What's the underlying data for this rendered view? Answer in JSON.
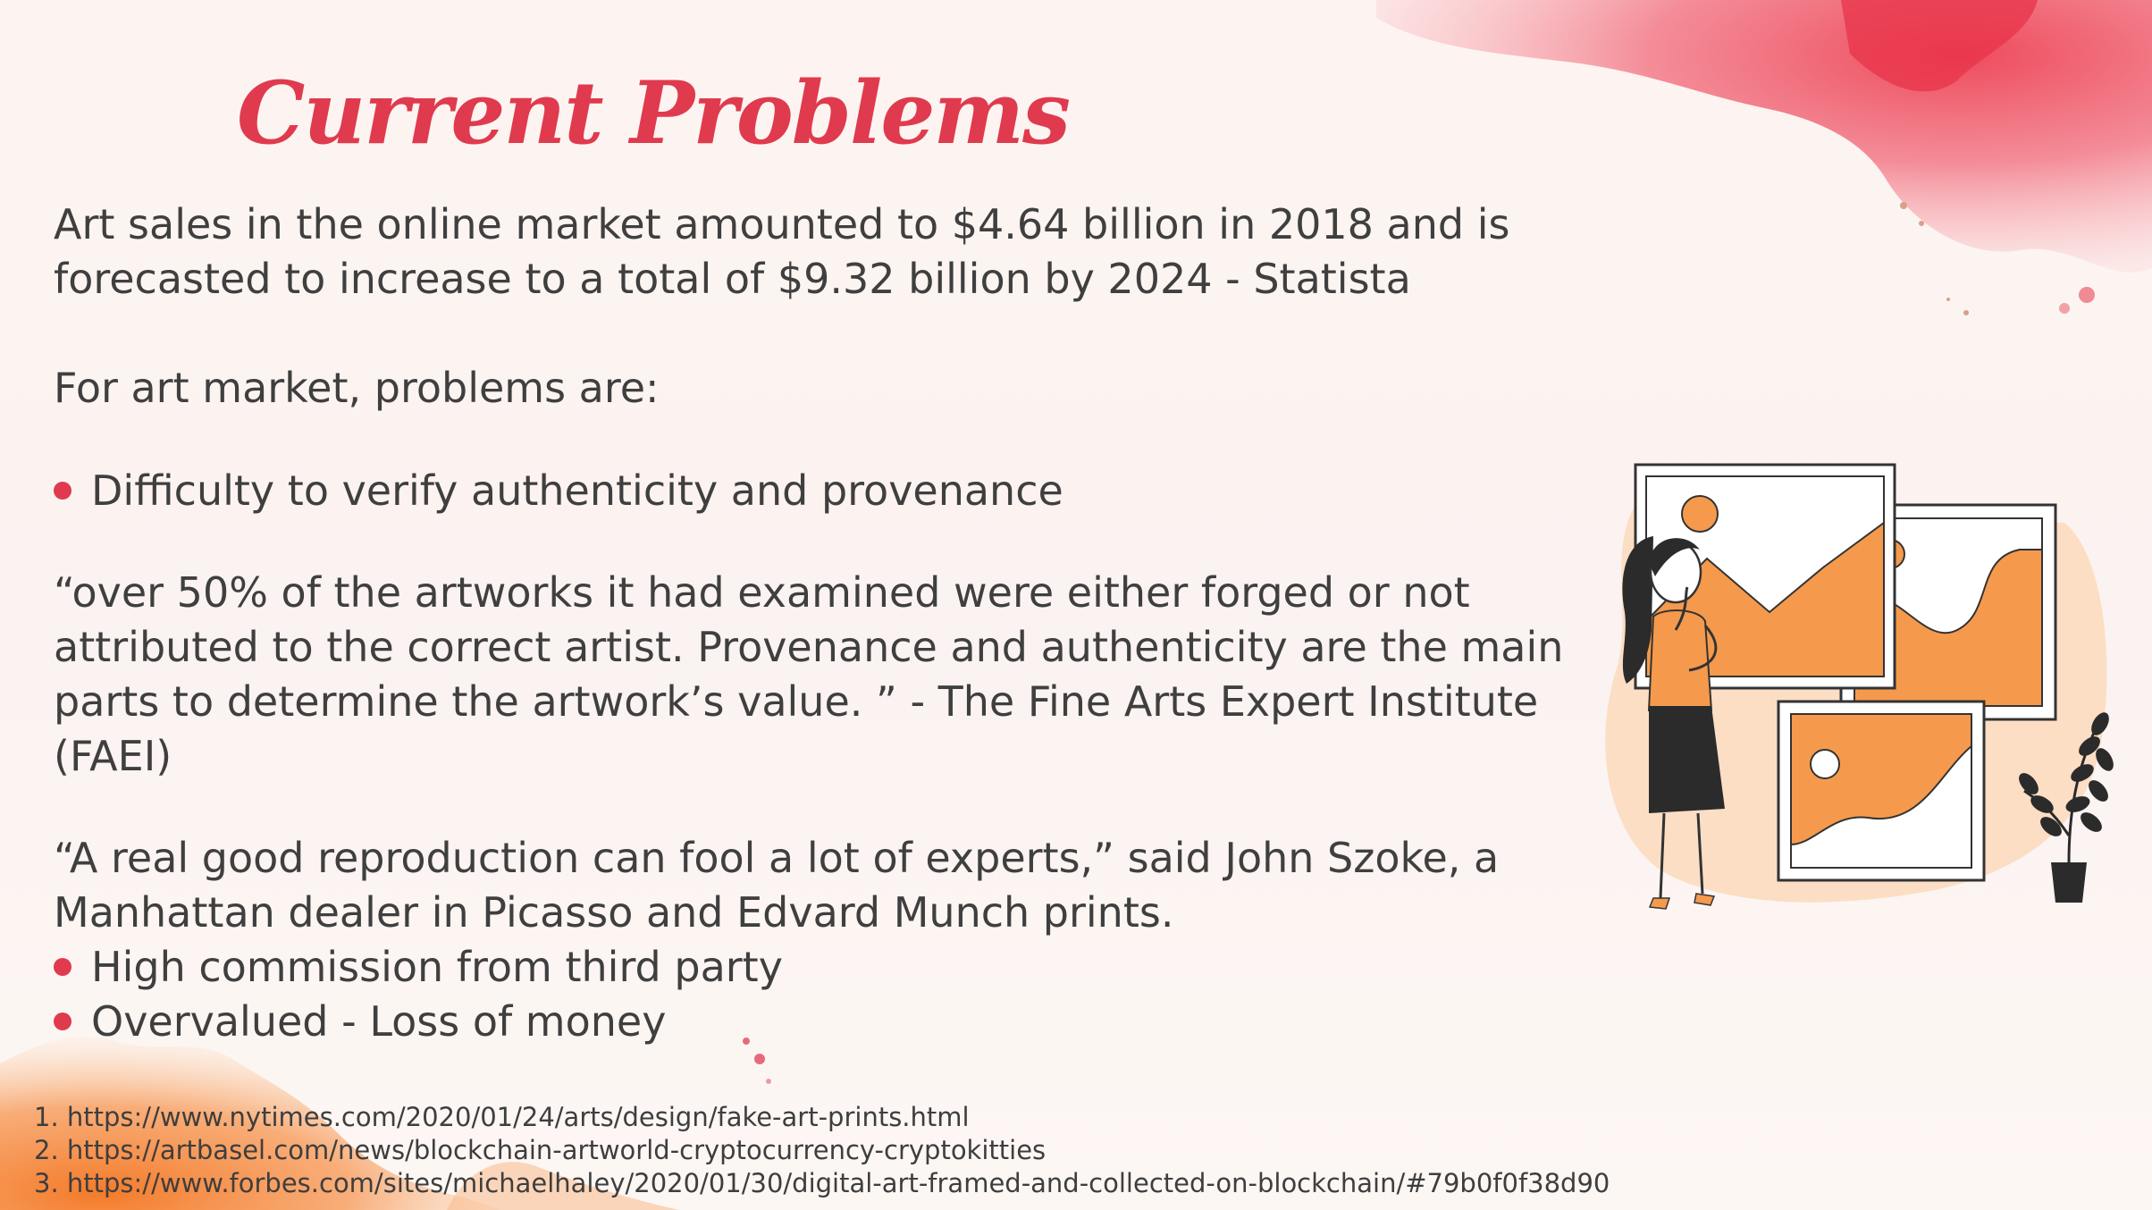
{
  "title": "Current Problems",
  "intro": {
    "line1": "Art sales in the online market amounted to $4.64 billion in 2018 and is",
    "line2": "forecasted to increase to a total of $9.32 billion by 2024 - Statista"
  },
  "problems_heading": "For art market, problems are:",
  "bullet1": "Difficulty to verify authenticity and provenance",
  "quote1": {
    "line1": "“over 50% of the artworks it had examined were either forged or not",
    "line2": "attributed to the correct artist. Provenance and authenticity are the main",
    "line3": "parts to determine the artwork’s value. ” - The Fine Arts Expert Institute",
    "line4": "(FAEI)"
  },
  "quote2": {
    "line1": "“A real good reproduction can fool a lot of experts,” said John Szoke, a",
    "line2": "Manhattan dealer in Picasso and Edvard Munch prints."
  },
  "bullet2": "High commission from third party",
  "bullet3": "Overvalued - Loss of money",
  "references": [
    "1. https://www.nytimes.com/2020/01/24/arts/design/fake-art-prints.html",
    "2. https://artbasel.com/news/blockchain-artworld-cryptocurrency-cryptokitties",
    "3. https://www.forbes.com/sites/michaelhaley/2020/01/30/digital-art-framed-and-collected-on-blockchain/#79b0f0f38d90"
  ],
  "colors": {
    "accent": "#e03a4e",
    "orange": "#f59a4c",
    "text": "#3f3f3f"
  },
  "decorations": [
    "watercolor-splash-pink",
    "watercolor-splash-orange",
    "woman-viewing-paintings-illustration"
  ]
}
